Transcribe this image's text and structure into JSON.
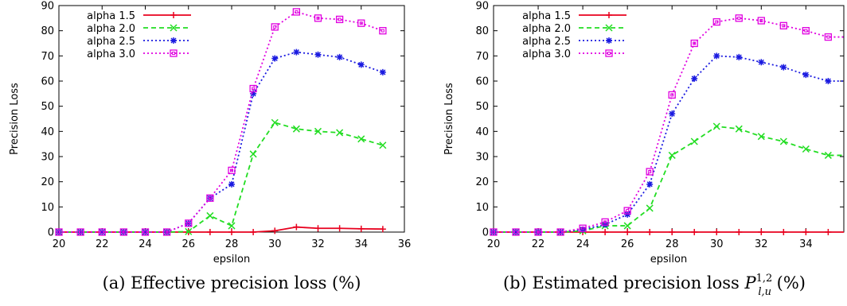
{
  "chart_data": [
    {
      "type": "line",
      "caption": "(a) Effective precision loss (%)",
      "xlabel": "epsilon",
      "ylabel": "Precision Loss",
      "xlim": [
        20,
        36
      ],
      "ylim": [
        0,
        90
      ],
      "xticks": [
        20,
        22,
        24,
        26,
        28,
        30,
        32,
        34,
        36
      ],
      "yticks": [
        0,
        10,
        20,
        30,
        40,
        50,
        60,
        70,
        80,
        90
      ],
      "grid": false,
      "legend_position": "top-left",
      "x": [
        20,
        21,
        22,
        23,
        24,
        25,
        26,
        27,
        28,
        29,
        30,
        31,
        32,
        33,
        34,
        35
      ],
      "series": [
        {
          "name": "alpha 1.5",
          "color": "#e8001e",
          "marker": "plus",
          "dash": "solid",
          "values": [
            0,
            0,
            0,
            0,
            0,
            0,
            0,
            0,
            0,
            0,
            0.5,
            2,
            1.5,
            1.5,
            1.3,
            1.2
          ]
        },
        {
          "name": "alpha 2.0",
          "color": "#22dd22",
          "marker": "x",
          "dash": "dashed",
          "values": [
            0,
            0,
            0,
            0,
            0,
            0,
            0.2,
            6.5,
            2.5,
            31,
            43.5,
            41,
            40,
            39.5,
            37,
            34.5
          ]
        },
        {
          "name": "alpha 2.5",
          "color": "#1a1ae0",
          "marker": "star",
          "dash": "dotted",
          "values": [
            0,
            0,
            0,
            0,
            0,
            0,
            3.5,
            13.5,
            19,
            55,
            69,
            71.5,
            70.5,
            69.5,
            66.5,
            63.5
          ]
        },
        {
          "name": "alpha 3.0",
          "color": "#e000e0",
          "marker": "square",
          "dash": "dotted",
          "values": [
            0,
            0,
            0,
            0,
            0,
            0,
            3.5,
            13.5,
            24.5,
            57,
            81.5,
            87.5,
            85,
            84.5,
            83,
            80
          ]
        }
      ]
    },
    {
      "type": "line",
      "caption": {
        "prefix": "(b) Estimated precision loss ",
        "symbol": "P",
        "sup": "1,2",
        "sub": "l,u",
        "suffix": " (%)"
      },
      "xlabel": "epsilon",
      "ylabel": "Precision Loss",
      "xlim": [
        20,
        35.7
      ],
      "ylim": [
        0,
        90
      ],
      "xticks": [
        20,
        22,
        24,
        26,
        28,
        30,
        32,
        34
      ],
      "yticks": [
        0,
        10,
        20,
        30,
        40,
        50,
        60,
        70,
        80,
        90
      ],
      "grid": false,
      "legend_position": "top-left",
      "x": [
        20,
        21,
        22,
        23,
        24,
        25,
        26,
        27,
        28,
        29,
        30,
        31,
        32,
        33,
        34,
        35,
        35.7
      ],
      "series": [
        {
          "name": "alpha 1.5",
          "color": "#e8001e",
          "marker": "plus",
          "dash": "solid",
          "values": [
            0,
            0,
            0,
            0,
            0,
            0,
            0,
            0,
            0,
            0,
            0,
            0,
            0,
            0,
            0,
            0,
            0
          ]
        },
        {
          "name": "alpha 2.0",
          "color": "#22dd22",
          "marker": "x",
          "dash": "dashed",
          "values": [
            0,
            0,
            0,
            0,
            0.5,
            2.5,
            2.5,
            9.5,
            30.5,
            36,
            42,
            41,
            38,
            36,
            33,
            30.5,
            30.5
          ]
        },
        {
          "name": "alpha 2.5",
          "color": "#1a1ae0",
          "marker": "star",
          "dash": "dotted",
          "values": [
            0,
            0,
            0,
            0,
            1,
            3,
            7,
            19,
            47,
            61,
            70,
            69.5,
            67.5,
            65.5,
            62.5,
            60,
            60
          ]
        },
        {
          "name": "alpha 3.0",
          "color": "#e000e0",
          "marker": "square",
          "dash": "dotted",
          "values": [
            0,
            0,
            0,
            0,
            1.5,
            4,
            8.5,
            24,
            54.5,
            75,
            83.5,
            85,
            84,
            82,
            80,
            77.5,
            77.5
          ]
        }
      ]
    }
  ]
}
